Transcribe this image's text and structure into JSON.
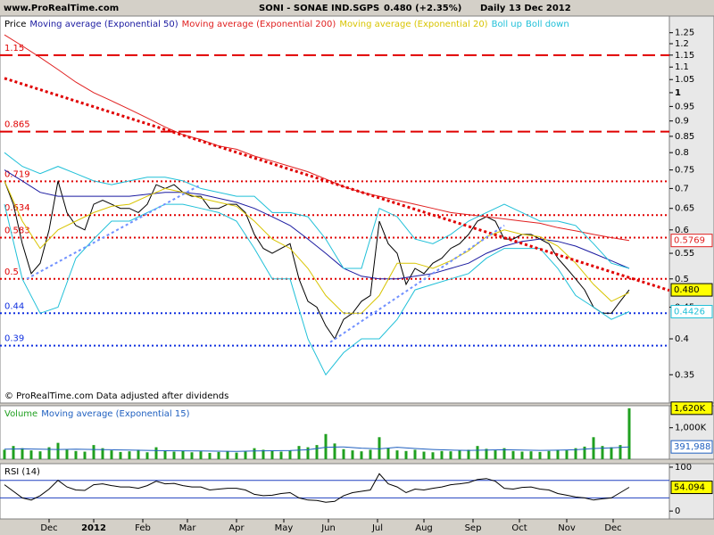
{
  "header": {
    "site": "www.ProRealTime.com",
    "title": [
      "SONI - SONAE IND.SGPS",
      "0.480 (+2.35%)",
      "Daily",
      "13 Dec 2012"
    ]
  },
  "chart_data": [
    {
      "type": "line",
      "log": true,
      "ylim": [
        0.315,
        1.33
      ],
      "xlim": [
        -0.5,
        74.5
      ],
      "yticks": [
        1.25,
        1.2,
        1.15,
        1.1,
        1.05,
        1,
        0.95,
        0.9,
        0.85,
        0.8,
        0.75,
        0.7,
        0.65,
        0.6,
        0.55,
        0.5,
        0.45,
        0.4,
        0.35
      ],
      "footer": "© ProRealTime.com  Data adjusted after dividends",
      "levels": [
        {
          "value": 1.15,
          "color": "#e00000",
          "style": "dash"
        },
        {
          "value": 0.865,
          "color": "#e00000",
          "style": "dash"
        },
        {
          "value": 0.719,
          "color": "#e00000",
          "style": "dot"
        },
        {
          "value": 0.634,
          "color": "#e00000",
          "style": "dot"
        },
        {
          "value": 0.583,
          "color": "#e00000",
          "style": "dot"
        },
        {
          "value": 0.5,
          "color": "#e00000",
          "style": "dot"
        },
        {
          "value": 0.44,
          "color": "#1030e0",
          "style": "dot"
        },
        {
          "value": 0.39,
          "color": "#1030e0",
          "style": "dot"
        }
      ],
      "trendlines": [
        {
          "color": "#e00000",
          "x": [
            0,
            74.5
          ],
          "values": [
            1.055,
            0.479
          ]
        },
        {
          "color": "#7090ff",
          "x": [
            2.5,
            22
          ],
          "values": [
            0.5,
            0.71
          ]
        },
        {
          "color": "#7090ff",
          "x": [
            36.5,
            56
          ],
          "values": [
            0.395,
            0.61
          ]
        }
      ],
      "series": [
        {
          "name": "Price",
          "color": "#000000",
          "box": {
            "label": "0.480"
          },
          "x": [
            0,
            1,
            2,
            3,
            4,
            5,
            6,
            7,
            8,
            9,
            10,
            11,
            12,
            13,
            14,
            15,
            16,
            17,
            18,
            19,
            20,
            21,
            22,
            23,
            24,
            25,
            26,
            27,
            28,
            29,
            30,
            31,
            32,
            33,
            34,
            35,
            36,
            37,
            38,
            39,
            40,
            41,
            42,
            43,
            44,
            45,
            46,
            47,
            48,
            49,
            50,
            51,
            52,
            53,
            54,
            55,
            56,
            57,
            58,
            59,
            60,
            61,
            62,
            63,
            64,
            65,
            66,
            67,
            68,
            69,
            70
          ],
          "values": [
            0.72,
            0.66,
            0.57,
            0.51,
            0.53,
            0.6,
            0.72,
            0.64,
            0.61,
            0.6,
            0.66,
            0.67,
            0.66,
            0.65,
            0.65,
            0.64,
            0.66,
            0.71,
            0.7,
            0.71,
            0.69,
            0.68,
            0.68,
            0.65,
            0.65,
            0.66,
            0.66,
            0.64,
            0.59,
            0.56,
            0.55,
            0.56,
            0.57,
            0.5,
            0.46,
            0.45,
            0.42,
            0.4,
            0.43,
            0.44,
            0.46,
            0.47,
            0.62,
            0.57,
            0.55,
            0.49,
            0.52,
            0.51,
            0.53,
            0.54,
            0.56,
            0.57,
            0.59,
            0.62,
            0.63,
            0.62,
            0.58,
            0.58,
            0.59,
            0.59,
            0.58,
            0.57,
            0.54,
            0.52,
            0.5,
            0.48,
            0.45,
            0.44,
            0.44,
            0.46,
            0.48
          ]
        },
        {
          "name": "Moving average (Exponential 50)",
          "color": "#1a1aa0",
          "x": [
            0,
            2,
            4,
            6,
            8,
            10,
            12,
            14,
            16,
            18,
            20,
            22,
            24,
            26,
            28,
            30,
            32,
            34,
            36,
            38,
            40,
            42,
            44,
            46,
            48,
            50,
            52,
            54,
            56,
            58,
            60,
            62,
            64,
            66,
            68,
            70
          ],
          "values": [
            0.75,
            0.72,
            0.69,
            0.68,
            0.68,
            0.68,
            0.68,
            0.68,
            0.685,
            0.69,
            0.69,
            0.685,
            0.675,
            0.665,
            0.65,
            0.63,
            0.61,
            0.58,
            0.55,
            0.52,
            0.505,
            0.5,
            0.5,
            0.505,
            0.51,
            0.52,
            0.53,
            0.55,
            0.565,
            0.575,
            0.58,
            0.575,
            0.565,
            0.55,
            0.535,
            0.52
          ]
        },
        {
          "name": "Moving average (Exponential 200)",
          "color": "#e02020",
          "box": true,
          "x": [
            0,
            2,
            4,
            6,
            8,
            10,
            12,
            14,
            16,
            18,
            20,
            22,
            24,
            26,
            28,
            30,
            32,
            34,
            36,
            38,
            40,
            42,
            44,
            46,
            48,
            50,
            52,
            54,
            56,
            58,
            60,
            62,
            64,
            66,
            68,
            70
          ],
          "values": [
            1.24,
            1.19,
            1.14,
            1.09,
            1.04,
            1.0,
            0.97,
            0.94,
            0.91,
            0.88,
            0.855,
            0.84,
            0.82,
            0.81,
            0.79,
            0.775,
            0.76,
            0.745,
            0.725,
            0.705,
            0.69,
            0.68,
            0.67,
            0.66,
            0.65,
            0.64,
            0.635,
            0.63,
            0.625,
            0.62,
            0.615,
            0.605,
            0.598,
            0.59,
            0.583,
            0.5769
          ]
        },
        {
          "name": "Moving average (Exponential 20)",
          "color": "#d8c400",
          "x": [
            0,
            2,
            4,
            6,
            8,
            10,
            12,
            14,
            16,
            18,
            20,
            22,
            24,
            26,
            28,
            30,
            32,
            34,
            36,
            38,
            40,
            42,
            44,
            46,
            48,
            50,
            52,
            54,
            56,
            58,
            60,
            62,
            64,
            66,
            68,
            70
          ],
          "values": [
            0.72,
            0.62,
            0.56,
            0.6,
            0.62,
            0.64,
            0.655,
            0.66,
            0.68,
            0.7,
            0.69,
            0.675,
            0.665,
            0.655,
            0.62,
            0.58,
            0.56,
            0.52,
            0.47,
            0.44,
            0.44,
            0.47,
            0.53,
            0.53,
            0.52,
            0.535,
            0.555,
            0.585,
            0.6,
            0.59,
            0.585,
            0.565,
            0.53,
            0.49,
            0.46,
            0.475
          ]
        },
        {
          "name": "Boll up",
          "color": "#20c0d8",
          "x": [
            0,
            2,
            4,
            6,
            8,
            10,
            12,
            14,
            16,
            18,
            20,
            22,
            24,
            26,
            28,
            30,
            32,
            34,
            36,
            38,
            40,
            42,
            44,
            46,
            48,
            50,
            52,
            54,
            56,
            58,
            60,
            62,
            64,
            66,
            68,
            70
          ],
          "values": [
            0.8,
            0.76,
            0.74,
            0.76,
            0.74,
            0.72,
            0.71,
            0.72,
            0.73,
            0.73,
            0.72,
            0.7,
            0.69,
            0.68,
            0.68,
            0.64,
            0.64,
            0.63,
            0.58,
            0.52,
            0.52,
            0.65,
            0.63,
            0.58,
            0.57,
            0.59,
            0.62,
            0.64,
            0.66,
            0.64,
            0.62,
            0.62,
            0.61,
            0.57,
            0.53,
            0.52
          ]
        },
        {
          "name": "Boll down",
          "color": "#20c0d8",
          "box": true,
          "x": [
            0,
            2,
            4,
            6,
            8,
            10,
            12,
            14,
            16,
            18,
            20,
            22,
            24,
            26,
            28,
            30,
            32,
            34,
            36,
            38,
            40,
            42,
            44,
            46,
            48,
            50,
            52,
            54,
            56,
            58,
            60,
            62,
            64,
            66,
            68,
            70
          ],
          "values": [
            0.66,
            0.5,
            0.44,
            0.45,
            0.54,
            0.58,
            0.62,
            0.62,
            0.64,
            0.66,
            0.66,
            0.65,
            0.64,
            0.62,
            0.56,
            0.5,
            0.5,
            0.4,
            0.35,
            0.38,
            0.4,
            0.4,
            0.43,
            0.48,
            0.49,
            0.5,
            0.51,
            0.54,
            0.56,
            0.56,
            0.56,
            0.52,
            0.47,
            0.45,
            0.43,
            0.4426
          ]
        }
      ]
    },
    {
      "type": "bar",
      "ylim": [
        0,
        1700000
      ],
      "yticks": [
        {
          "value": 1000000,
          "label": "1,000K"
        }
      ],
      "series": [
        {
          "name": "Volume",
          "color": "#20a020",
          "box": {
            "label": "1,620K"
          },
          "x": [
            0,
            1,
            2,
            3,
            4,
            5,
            6,
            7,
            8,
            9,
            10,
            11,
            12,
            13,
            14,
            15,
            16,
            17,
            18,
            19,
            20,
            21,
            22,
            23,
            24,
            25,
            26,
            27,
            28,
            29,
            30,
            31,
            32,
            33,
            34,
            35,
            36,
            37,
            38,
            39,
            40,
            41,
            42,
            43,
            44,
            45,
            46,
            47,
            48,
            49,
            50,
            51,
            52,
            53,
            54,
            55,
            56,
            57,
            58,
            59,
            60,
            61,
            62,
            63,
            64,
            65,
            66,
            67,
            68,
            69,
            70
          ],
          "values": [
            300000,
            420000,
            350000,
            280000,
            250000,
            380000,
            520000,
            300000,
            260000,
            240000,
            450000,
            350000,
            280000,
            230000,
            250000,
            300000,
            220000,
            380000,
            260000,
            240000,
            270000,
            220000,
            250000,
            200000,
            230000,
            260000,
            210000,
            240000,
            350000,
            300000,
            260000,
            240000,
            280000,
            420000,
            380000,
            450000,
            800000,
            500000,
            320000,
            280000,
            250000,
            300000,
            700000,
            350000,
            280000,
            260000,
            300000,
            240000,
            220000,
            260000,
            250000,
            280000,
            300000,
            420000,
            330000,
            280000,
            350000,
            260000,
            240000,
            250000,
            230000,
            260000,
            300000,
            280000,
            350000,
            400000,
            700000,
            420000,
            380000,
            450000,
            1620000
          ]
        },
        {
          "name": "Moving average (Exponential 15)",
          "color": "#2060c0",
          "box": {
            "label": "391,988"
          },
          "x": [
            0,
            2,
            4,
            6,
            8,
            10,
            12,
            14,
            16,
            18,
            20,
            22,
            24,
            26,
            28,
            30,
            32,
            34,
            36,
            38,
            40,
            42,
            44,
            46,
            48,
            50,
            52,
            54,
            56,
            58,
            60,
            62,
            64,
            66,
            68,
            70
          ],
          "values": [
            320000,
            330000,
            320000,
            310000,
            320000,
            310000,
            300000,
            290000,
            280000,
            270000,
            265000,
            260000,
            255000,
            250000,
            260000,
            270000,
            275000,
            300000,
            380000,
            390000,
            350000,
            330000,
            380000,
            340000,
            310000,
            290000,
            280000,
            290000,
            300000,
            290000,
            280000,
            285000,
            300000,
            340000,
            360000,
            391988
          ]
        }
      ]
    },
    {
      "type": "line",
      "title": "RSI (14)",
      "ylim": [
        -18,
        108
      ],
      "yticks": [
        100,
        0
      ],
      "guides": [
        70,
        30
      ],
      "xticks": [
        {
          "value": 5,
          "label": "Dec"
        },
        {
          "value": 10,
          "label": "2012"
        },
        {
          "value": 15.5,
          "label": "Feb"
        },
        {
          "value": 20.5,
          "label": "Mar"
        },
        {
          "value": 26,
          "label": "Apr"
        },
        {
          "value": 31.3,
          "label": "May"
        },
        {
          "value": 36.3,
          "label": "Jun"
        },
        {
          "value": 41.8,
          "label": "Jul"
        },
        {
          "value": 47,
          "label": "Aug"
        },
        {
          "value": 52.5,
          "label": "Sep"
        },
        {
          "value": 57.7,
          "label": "Oct"
        },
        {
          "value": 63,
          "label": "Nov"
        },
        {
          "value": 68.2,
          "label": "Dec"
        }
      ],
      "series": [
        {
          "color": "#000000",
          "box": true,
          "x": [
            0,
            1,
            2,
            3,
            4,
            5,
            6,
            7,
            8,
            9,
            10,
            11,
            12,
            13,
            14,
            15,
            16,
            17,
            18,
            19,
            20,
            21,
            22,
            23,
            24,
            25,
            26,
            27,
            28,
            29,
            30,
            31,
            32,
            33,
            34,
            35,
            36,
            37,
            38,
            39,
            40,
            41,
            42,
            43,
            44,
            45,
            46,
            47,
            48,
            49,
            50,
            51,
            52,
            53,
            54,
            55,
            56,
            57,
            58,
            59,
            60,
            61,
            62,
            63,
            64,
            65,
            66,
            67,
            68,
            69,
            70
          ],
          "values": [
            60,
            45,
            30,
            25,
            35,
            50,
            70,
            55,
            48,
            47,
            60,
            62,
            58,
            55,
            55,
            52,
            58,
            68,
            62,
            63,
            58,
            55,
            55,
            48,
            50,
            52,
            52,
            48,
            38,
            35,
            36,
            40,
            42,
            30,
            25,
            24,
            20,
            22,
            35,
            42,
            45,
            48,
            85,
            62,
            55,
            42,
            50,
            48,
            52,
            55,
            60,
            62,
            65,
            72,
            74,
            68,
            52,
            50,
            54,
            55,
            50,
            48,
            40,
            36,
            32,
            30,
            25,
            28,
            30,
            42,
            54.094
          ]
        }
      ]
    }
  ]
}
